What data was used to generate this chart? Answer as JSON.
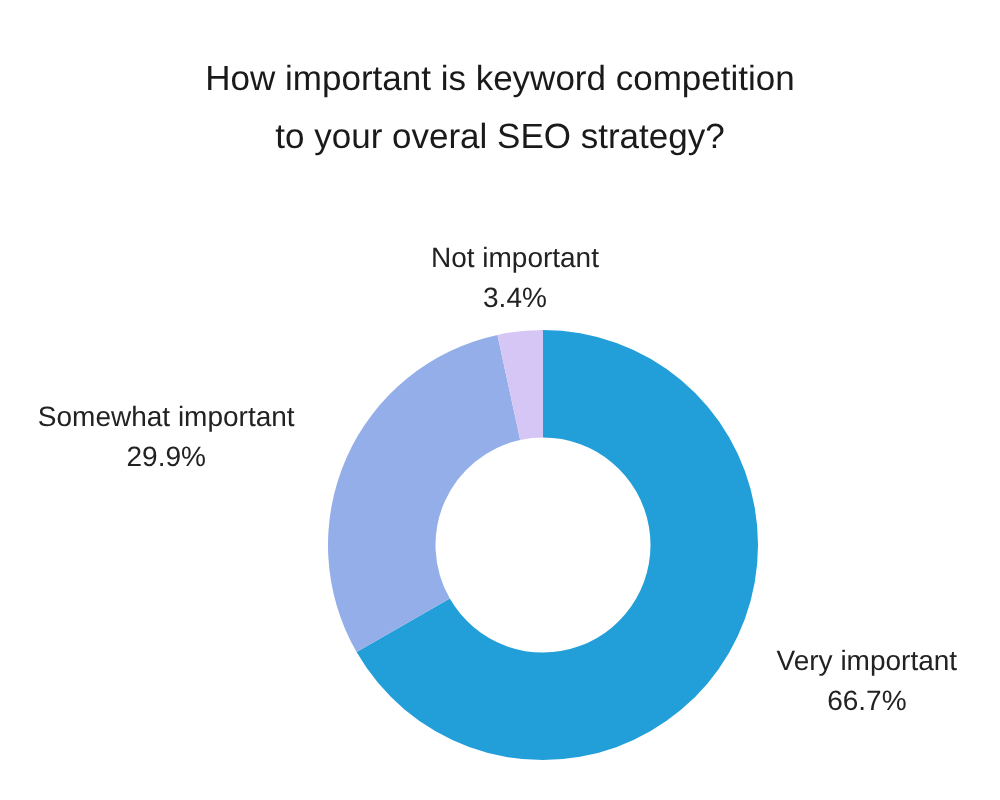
{
  "chart_data": {
    "type": "donut",
    "title": "How important is keyword competition\nto your overal SEO strategy?",
    "categories": [
      "Very important",
      "Somewhat important",
      "Not important"
    ],
    "values": [
      66.7,
      29.9,
      3.4
    ],
    "value_labels": [
      "66.7%",
      "29.9%",
      "3.4%"
    ],
    "colors": [
      "#229ed9",
      "#93aee8",
      "#d6c6f5"
    ],
    "legend": false
  }
}
